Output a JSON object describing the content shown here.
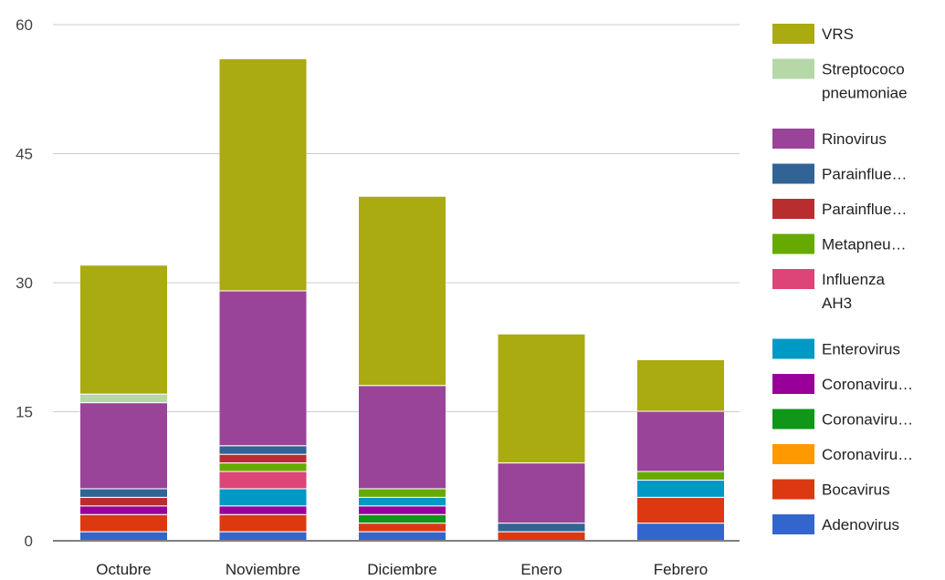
{
  "chart_data": {
    "type": "bar",
    "stacked": true,
    "categories": [
      "Octubre",
      "Noviembre",
      "Diciembre",
      "Enero",
      "Febrero"
    ],
    "ylim": [
      0,
      60
    ],
    "yticks": [
      0,
      15,
      30,
      45,
      60
    ],
    "grid": true,
    "legend_position": "right",
    "series": [
      {
        "name": "Adenovirus",
        "color": "#3366cc",
        "values": [
          1,
          1,
          1,
          0,
          2
        ]
      },
      {
        "name": "Bocavirus",
        "color": "#dc3912",
        "values": [
          2,
          2,
          1,
          1,
          3
        ]
      },
      {
        "name": "Coronaviru…",
        "color": "#ff9900",
        "values": [
          0,
          0,
          0,
          0,
          0
        ]
      },
      {
        "name": "Coronaviru…",
        "color": "#109618",
        "values": [
          0,
          0,
          1,
          0,
          0
        ]
      },
      {
        "name": "Coronaviru…",
        "color": "#990099",
        "values": [
          1,
          1,
          1,
          0,
          0
        ]
      },
      {
        "name": "Enterovirus",
        "color": "#0099c6",
        "values": [
          0,
          2,
          1,
          0,
          2
        ]
      },
      {
        "name": "Influenza AH3",
        "color": "#dd4477",
        "values": [
          0,
          2,
          0,
          0,
          0
        ]
      },
      {
        "name": "Metapneu…",
        "color": "#66aa00",
        "values": [
          0,
          1,
          1,
          0,
          1
        ]
      },
      {
        "name": "Parainflue…",
        "color": "#b82e2e",
        "values": [
          1,
          1,
          0,
          0,
          0
        ]
      },
      {
        "name": "Parainflue…",
        "color": "#316395",
        "values": [
          1,
          1,
          0,
          1,
          0
        ]
      },
      {
        "name": "Rinovirus",
        "color": "#994499",
        "values": [
          10,
          18,
          12,
          7,
          7
        ]
      },
      {
        "name": "Streptococo pneumoniae",
        "color": "#b6d7a8",
        "values": [
          1,
          0,
          0,
          0,
          0
        ]
      },
      {
        "name": "VRS",
        "color": "#aaaa11",
        "values": [
          15,
          27,
          22,
          15,
          6
        ]
      }
    ]
  }
}
